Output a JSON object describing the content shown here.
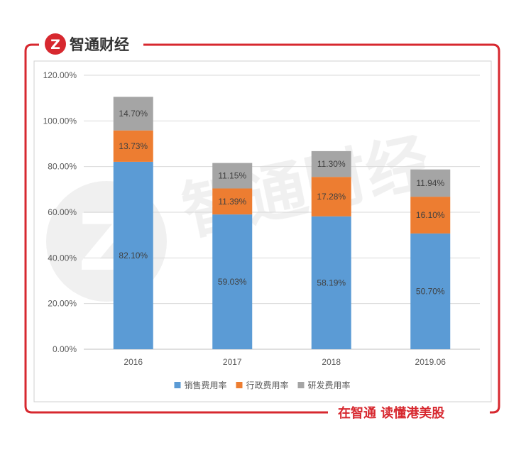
{
  "brand": {
    "name": "智通财经",
    "logo_glyph": "Z",
    "slogan": "在智通 读懂港美股"
  },
  "colors": {
    "frame": "#d7282f",
    "sales": "#5b9bd5",
    "admin": "#ed7d31",
    "rnd": "#a5a5a5",
    "grid": "#d9d9d9"
  },
  "chart_data": {
    "type": "bar",
    "stacked": true,
    "categories": [
      "2016",
      "2017",
      "2018",
      "2019.06"
    ],
    "series": [
      {
        "name": "销售费用率",
        "values": [
          82.1,
          59.03,
          58.19,
          50.7
        ],
        "labels": [
          "82.10%",
          "59.03%",
          "58.19%",
          "50.70%"
        ],
        "color": "#5b9bd5"
      },
      {
        "name": "行政费用率",
        "values": [
          13.73,
          11.39,
          17.28,
          16.1
        ],
        "labels": [
          "13.73%",
          "11.39%",
          "17.28%",
          "16.10%"
        ],
        "color": "#ed7d31"
      },
      {
        "name": "研发费用率",
        "values": [
          14.7,
          11.15,
          11.3,
          11.94
        ],
        "labels": [
          "14.70%",
          "11.15%",
          "11.30%",
          "11.94%"
        ],
        "color": "#a5a5a5"
      }
    ],
    "ylim": [
      0,
      120
    ],
    "yticks": [
      "0.00%",
      "20.00%",
      "40.00%",
      "60.00%",
      "80.00%",
      "100.00%",
      "120.00%"
    ],
    "grid": true,
    "legend": "bottom"
  }
}
